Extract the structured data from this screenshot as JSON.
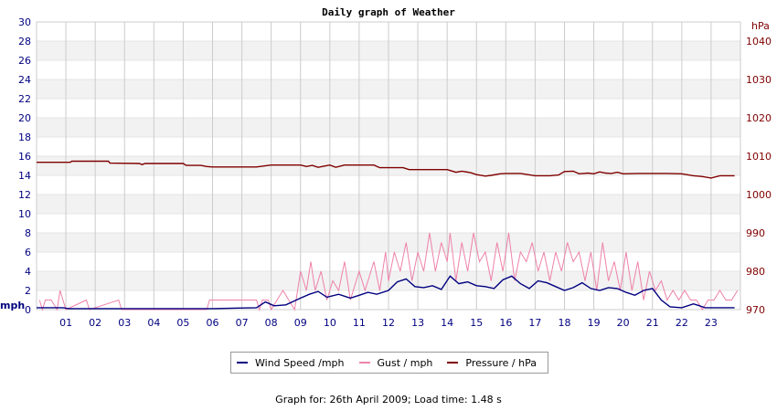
{
  "chart_data": {
    "type": "line",
    "title": "Daily graph of Weather",
    "left_axis": {
      "unit": "mph",
      "ylim": [
        0,
        30
      ],
      "ticks": [
        0,
        2,
        4,
        6,
        8,
        10,
        12,
        14,
        16,
        18,
        20,
        22,
        24,
        26,
        28,
        30
      ]
    },
    "right_axis": {
      "unit": "hPa",
      "ylim": [
        970,
        1045
      ],
      "ticks": [
        970,
        980,
        990,
        1000,
        1010,
        1020,
        1030,
        1040
      ]
    },
    "x_ticks": [
      "01",
      "02",
      "03",
      "04",
      "05",
      "06",
      "07",
      "08",
      "09",
      "10",
      "11",
      "12",
      "13",
      "14",
      "15",
      "16",
      "17",
      "18",
      "19",
      "20",
      "21",
      "22",
      "23"
    ],
    "x_range": [
      0,
      24
    ],
    "grid": true,
    "legend_placement": "bottom",
    "series": [
      {
        "name": "Wind Speed /mph",
        "axis": "left",
        "color": "#000080",
        "x": [
          0,
          0.5,
          0.9,
          1.1,
          2,
          4,
          6,
          7.5,
          7.8,
          8.1,
          8.5,
          9.0,
          9.3,
          9.6,
          9.9,
          10.3,
          10.7,
          11.0,
          11.3,
          11.6,
          12.0,
          12.3,
          12.6,
          12.9,
          13.2,
          13.5,
          13.8,
          14.1,
          14.4,
          14.7,
          15.0,
          15.3,
          15.6,
          15.9,
          16.2,
          16.5,
          16.8,
          17.1,
          17.4,
          17.7,
          18.0,
          18.3,
          18.6,
          18.9,
          19.2,
          19.5,
          19.8,
          20.1,
          20.4,
          20.7,
          21.0,
          21.3,
          21.6,
          22.0,
          22.4,
          22.8,
          23.2,
          23.8
        ],
        "values": [
          0.2,
          0.2,
          0.2,
          0.1,
          0.1,
          0.1,
          0.1,
          0.2,
          0.8,
          0.4,
          0.5,
          1.2,
          1.6,
          1.9,
          1.3,
          1.6,
          1.2,
          1.5,
          1.8,
          1.6,
          2.0,
          2.9,
          3.2,
          2.4,
          2.3,
          2.5,
          2.1,
          3.5,
          2.7,
          2.9,
          2.5,
          2.4,
          2.2,
          3.1,
          3.5,
          2.7,
          2.2,
          3.0,
          2.8,
          2.4,
          2.0,
          2.3,
          2.8,
          2.2,
          2.0,
          2.3,
          2.2,
          1.8,
          1.5,
          2.0,
          2.2,
          1.0,
          0.3,
          0.2,
          0.6,
          0.2,
          0.2,
          0.2
        ]
      },
      {
        "name": "Gust / mph",
        "axis": "left",
        "color": "#ee82aa",
        "x": [
          0.1,
          0.2,
          0.3,
          0.5,
          0.7,
          0.8,
          0.9,
          1.0,
          1.7,
          1.8,
          2.8,
          2.9,
          5.8,
          5.9,
          6.0,
          7.5,
          7.6,
          7.7,
          7.9,
          8.0,
          8.2,
          8.4,
          8.6,
          8.8,
          9.0,
          9.2,
          9.35,
          9.5,
          9.7,
          9.9,
          10.1,
          10.3,
          10.5,
          10.7,
          10.9,
          11.0,
          11.2,
          11.4,
          11.5,
          11.7,
          11.9,
          12.0,
          12.2,
          12.4,
          12.6,
          12.8,
          13.0,
          13.2,
          13.4,
          13.6,
          13.8,
          14.0,
          14.1,
          14.3,
          14.5,
          14.7,
          14.9,
          15.1,
          15.3,
          15.5,
          15.7,
          15.9,
          16.1,
          16.3,
          16.5,
          16.7,
          16.9,
          17.1,
          17.3,
          17.5,
          17.7,
          17.9,
          18.1,
          18.3,
          18.5,
          18.7,
          18.9,
          19.1,
          19.3,
          19.5,
          19.7,
          19.9,
          20.1,
          20.3,
          20.5,
          20.7,
          20.9,
          21.1,
          21.3,
          21.5,
          21.7,
          21.9,
          22.1,
          22.3,
          22.5,
          22.7,
          22.9,
          23.1,
          23.3,
          23.5,
          23.7,
          23.9
        ],
        "values": [
          1,
          0,
          1,
          1,
          0,
          2,
          1,
          0,
          1,
          0,
          1,
          0,
          0,
          1,
          1,
          1,
          0,
          1,
          1,
          0,
          1,
          2,
          1,
          0,
          4,
          2,
          5,
          2,
          4,
          1,
          3,
          2,
          5,
          1,
          3,
          4,
          2,
          4,
          5,
          2,
          6,
          3,
          6,
          4,
          7,
          3,
          6,
          4,
          8,
          4,
          7,
          5,
          8,
          3,
          7,
          4,
          8,
          5,
          6,
          3,
          7,
          4,
          8,
          3,
          6,
          5,
          7,
          4,
          6,
          3,
          6,
          4,
          7,
          5,
          6,
          3,
          6,
          2,
          7,
          3,
          5,
          2,
          6,
          2,
          5,
          1,
          4,
          2,
          3,
          1,
          2,
          1,
          2,
          1,
          1,
          0,
          1,
          1,
          2,
          1,
          1,
          2
        ]
      },
      {
        "name": "Pressure / hPa",
        "axis": "right",
        "color": "#800000",
        "x": [
          0,
          1.15,
          1.2,
          2.45,
          2.5,
          3.5,
          3.6,
          3.7,
          5.0,
          5.1,
          5.6,
          5.8,
          6.0,
          7.0,
          7.5,
          8.0,
          9.0,
          9.2,
          9.4,
          9.6,
          9.8,
          10.0,
          10.2,
          10.5,
          11.0,
          11.5,
          11.7,
          12.0,
          12.5,
          12.7,
          13.0,
          14.0,
          14.3,
          14.5,
          14.8,
          15.0,
          15.3,
          15.5,
          15.8,
          16.0,
          16.5,
          17.0,
          17.5,
          17.8,
          18.0,
          18.3,
          18.5,
          18.8,
          19.0,
          19.2,
          19.4,
          19.6,
          19.8,
          20.0,
          20.5,
          21.0,
          21.5,
          22.0,
          22.4,
          22.7,
          23.0,
          23.3,
          23.8
        ],
        "values": [
          1008.4,
          1008.4,
          1008.7,
          1008.7,
          1008.2,
          1008.1,
          1007.8,
          1008.1,
          1008.1,
          1007.6,
          1007.6,
          1007.3,
          1007.2,
          1007.2,
          1007.2,
          1007.7,
          1007.7,
          1007.3,
          1007.6,
          1007.1,
          1007.4,
          1007.7,
          1007.1,
          1007.7,
          1007.7,
          1007.7,
          1007.0,
          1007.0,
          1007.0,
          1006.5,
          1006.5,
          1006.5,
          1005.8,
          1006.1,
          1005.7,
          1005.2,
          1004.8,
          1005.0,
          1005.4,
          1005.5,
          1005.5,
          1004.9,
          1004.9,
          1005.1,
          1006.0,
          1006.1,
          1005.4,
          1005.6,
          1005.4,
          1005.9,
          1005.6,
          1005.5,
          1005.8,
          1005.4,
          1005.5,
          1005.5,
          1005.5,
          1005.4,
          1004.9,
          1004.7,
          1004.3,
          1004.9,
          1004.9
        ]
      }
    ]
  },
  "legend": {
    "wind_label": "Wind Speed /mph",
    "gust_label": "Gust / mph",
    "pressure_label": "Pressure / hPa"
  },
  "footer": "Graph for: 26th April 2009; Load time: 1.48 s"
}
